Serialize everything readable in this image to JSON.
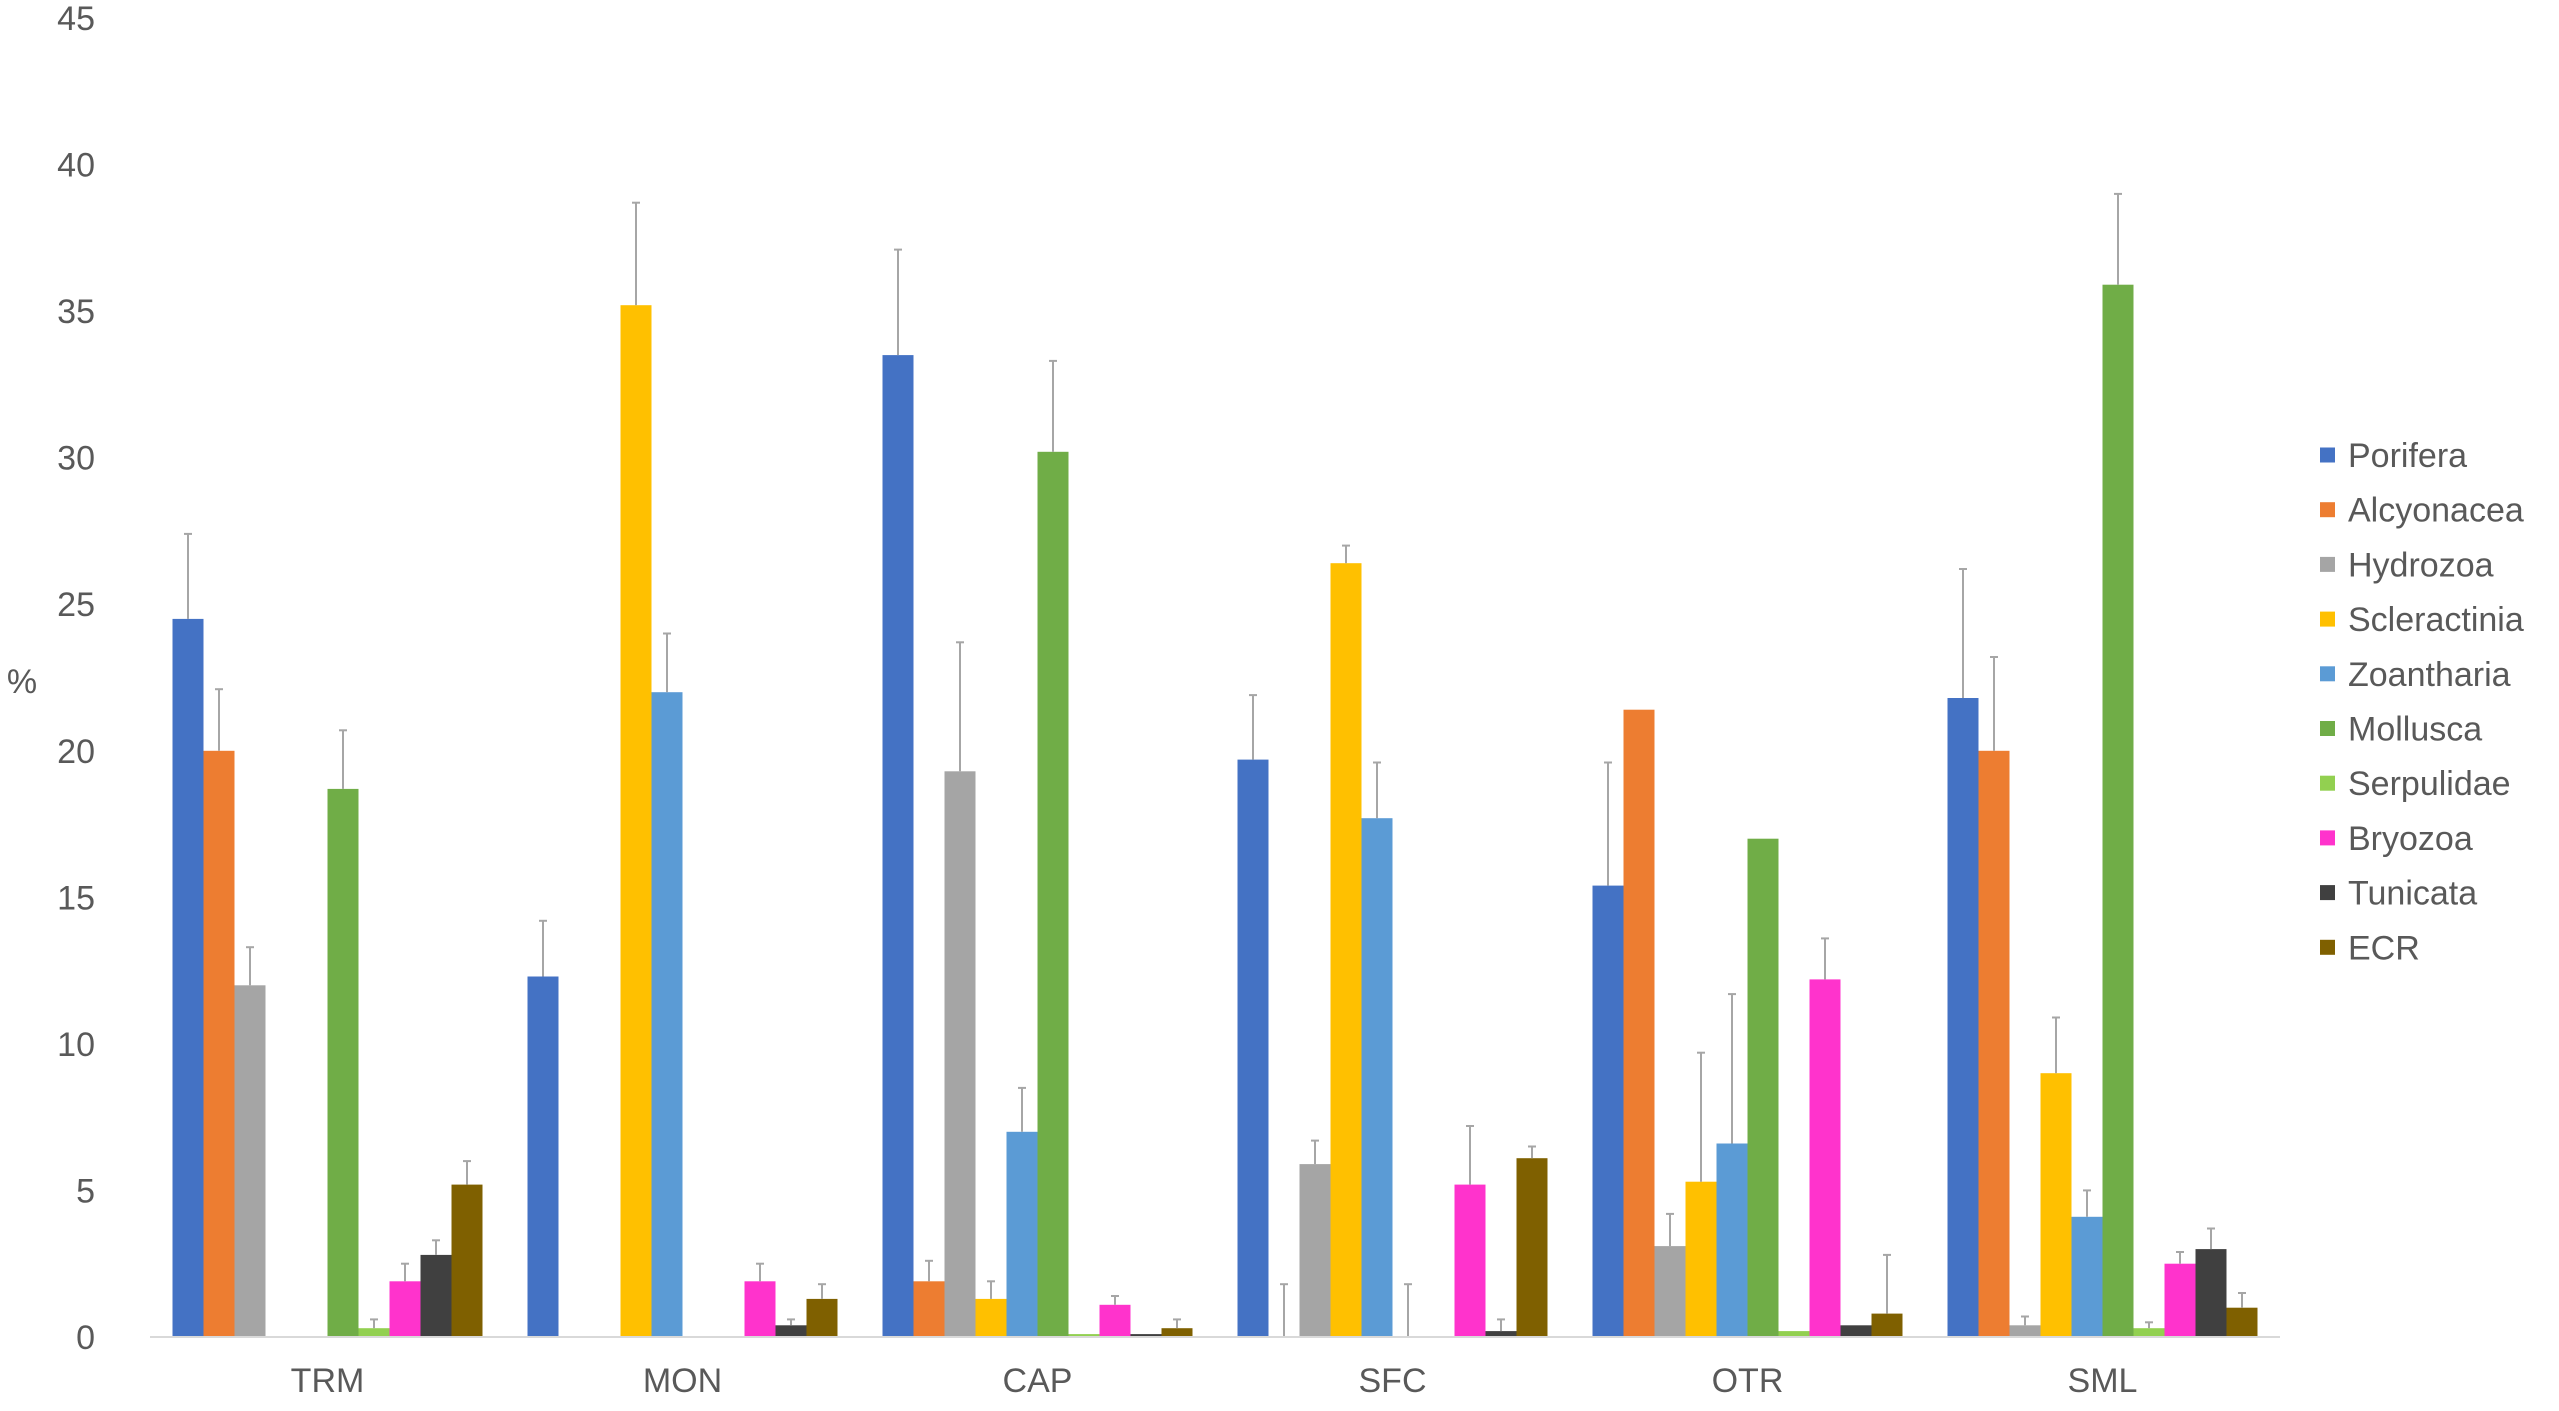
{
  "chart_data": {
    "type": "bar",
    "title": "",
    "xlabel": "",
    "ylabel": "%",
    "ylim": [
      0,
      45
    ],
    "yticks": [
      0,
      5,
      10,
      15,
      20,
      25,
      30,
      35,
      40,
      45
    ],
    "grid": false,
    "legend_position": "right",
    "error_bars": true,
    "categories": [
      "TRM",
      "MON",
      "CAP",
      "SFC",
      "OTR",
      "SML"
    ],
    "series": [
      {
        "name": "Porifera",
        "color": "#4472C4",
        "values": [
          24.5,
          12.3,
          33.5,
          19.7,
          15.4,
          21.8
        ],
        "errors": [
          2.9,
          1.9,
          3.6,
          2.2,
          4.2,
          4.4
        ]
      },
      {
        "name": "Alcyonacea",
        "color": "#ED7D31",
        "values": [
          20.0,
          0,
          1.9,
          0,
          21.4,
          20.0
        ],
        "errors": [
          2.1,
          0,
          0.7,
          1.8,
          0,
          3.2
        ]
      },
      {
        "name": "Hydrozoa",
        "color": "#A5A5A5",
        "values": [
          12.0,
          0,
          19.3,
          5.9,
          3.1,
          0.4
        ],
        "errors": [
          1.3,
          0,
          4.4,
          0.8,
          1.1,
          0.3
        ]
      },
      {
        "name": "Scleractinia",
        "color": "#FFC000",
        "values": [
          0,
          35.2,
          1.3,
          26.4,
          5.3,
          9.0
        ],
        "errors": [
          0,
          3.5,
          0.6,
          0.6,
          4.4,
          1.9
        ]
      },
      {
        "name": "Zoantharia",
        "color": "#5B9BD5",
        "values": [
          0,
          22.0,
          7.0,
          17.7,
          6.6,
          4.1
        ],
        "errors": [
          0,
          2.0,
          1.5,
          1.9,
          5.1,
          0.9
        ]
      },
      {
        "name": "Mollusca",
        "color": "#70AD47",
        "values": [
          18.7,
          0,
          30.2,
          0,
          17.0,
          35.9
        ],
        "errors": [
          2.0,
          0,
          3.1,
          1.8,
          0,
          3.1
        ]
      },
      {
        "name": "Serpulidae",
        "color": "#92D050",
        "values": [
          0.3,
          0,
          0.1,
          0,
          0.2,
          0.3
        ],
        "errors": [
          0.3,
          0,
          0,
          0,
          0,
          0.2
        ]
      },
      {
        "name": "Bryozoa",
        "color": "#FF33CC",
        "values": [
          1.9,
          1.9,
          1.1,
          5.2,
          12.2,
          2.5
        ],
        "errors": [
          0.6,
          0.6,
          0.3,
          2.0,
          1.4,
          0.4
        ]
      },
      {
        "name": "Tunicata",
        "color": "#404040",
        "values": [
          2.8,
          0.4,
          0.1,
          0.2,
          0.4,
          3.0
        ],
        "errors": [
          0.5,
          0.2,
          0,
          0.4,
          0,
          0.7
        ]
      },
      {
        "name": "ECR",
        "color": "#7F6000",
        "values": [
          5.2,
          1.3,
          0.3,
          6.1,
          0.8,
          1.0
        ],
        "errors": [
          0.8,
          0.5,
          0.3,
          0.4,
          2.0,
          0.5
        ]
      }
    ]
  }
}
